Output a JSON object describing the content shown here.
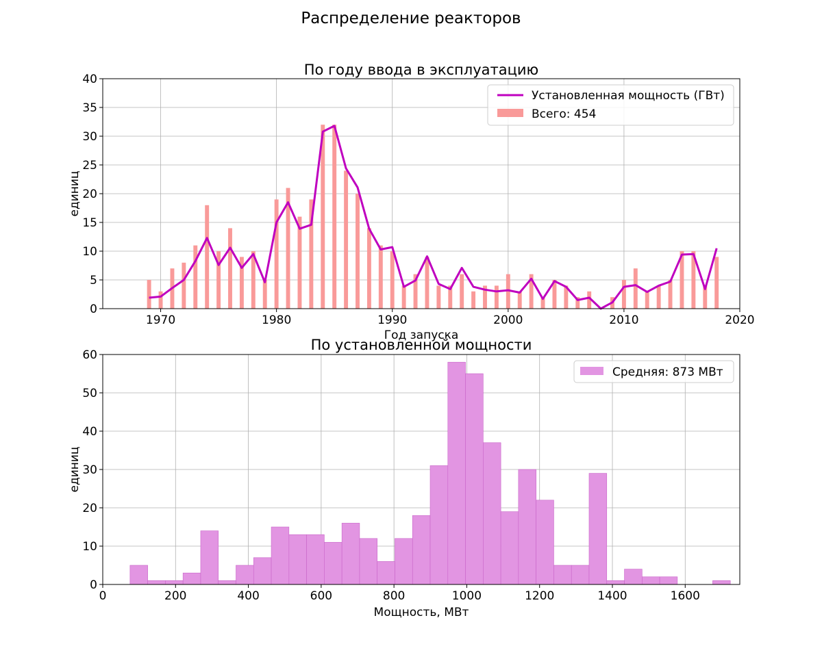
{
  "figure": {
    "title": "Распределение реакторов"
  },
  "chart_data": [
    {
      "type": "bar",
      "title": "По году ввода в эксплуатацию",
      "xlabel": "Год запуска",
      "ylabel": "единиц",
      "xlim": [
        1965,
        2020
      ],
      "ylim": [
        0,
        40
      ],
      "xticks": [
        1970,
        1980,
        1990,
        2000,
        2010,
        2020
      ],
      "yticks": [
        0,
        5,
        10,
        15,
        20,
        25,
        30,
        35,
        40
      ],
      "grid": true,
      "legend_position": "top-right",
      "x": [
        1969,
        1970,
        1971,
        1972,
        1973,
        1974,
        1975,
        1976,
        1977,
        1978,
        1979,
        1980,
        1981,
        1982,
        1983,
        1984,
        1985,
        1986,
        1987,
        1988,
        1989,
        1990,
        1991,
        1992,
        1993,
        1994,
        1995,
        1996,
        1997,
        1998,
        1999,
        2000,
        2001,
        2002,
        2003,
        2004,
        2005,
        2006,
        2007,
        2008,
        2009,
        2010,
        2011,
        2012,
        2013,
        2014,
        2015,
        2016,
        2017,
        2018
      ],
      "series": [
        {
          "name": "Всего: 454",
          "kind": "bar",
          "color": "#f99a99",
          "values": [
            5,
            3,
            7,
            8,
            11,
            18,
            10,
            14,
            9,
            10,
            5,
            19,
            21,
            16,
            19,
            32,
            32,
            24,
            20,
            14,
            11,
            10,
            4,
            6,
            9,
            4,
            4,
            6,
            3,
            4,
            4,
            6,
            3,
            6,
            2,
            5,
            4,
            2,
            3,
            0,
            2,
            5,
            7,
            3,
            4,
            5,
            10,
            10,
            4,
            9
          ]
        },
        {
          "name": "Установленная мощность (ГВт)",
          "kind": "line",
          "color": "#bf00bf",
          "values": [
            1.9,
            2.1,
            3.6,
            5.0,
            8.3,
            12.3,
            7.6,
            10.6,
            7.1,
            9.5,
            4.6,
            15.0,
            18.5,
            13.9,
            14.6,
            30.8,
            31.8,
            24.4,
            21.1,
            13.9,
            10.3,
            10.7,
            3.8,
            4.9,
            9.1,
            4.3,
            3.4,
            7.1,
            3.8,
            3.3,
            3.0,
            3.2,
            2.8,
            5.2,
            1.7,
            4.8,
            3.8,
            1.5,
            1.9,
            0.0,
            1.1,
            3.8,
            4.1,
            2.9,
            4.0,
            4.7,
            9.4,
            9.5,
            3.4,
            10.5
          ]
        }
      ]
    },
    {
      "type": "bar",
      "title": "По установленной мощности",
      "xlabel": "Мощность, МВт",
      "ylabel": "единиц",
      "xlim": [
        0,
        1750
      ],
      "ylim": [
        0,
        60
      ],
      "xticks": [
        0,
        200,
        400,
        600,
        800,
        1000,
        1200,
        1400,
        1600
      ],
      "yticks": [
        0,
        10,
        20,
        30,
        40,
        50,
        60
      ],
      "grid": true,
      "legend_position": "top-right",
      "bin_width": 48.5,
      "bin_start": 75,
      "series": [
        {
          "name": "Средняя: 873 МВт",
          "kind": "histogram",
          "color": "#e295e2",
          "edge_color": "#c965c9",
          "values": [
            5,
            1,
            1,
            3,
            14,
            1,
            5,
            7,
            15,
            13,
            13,
            11,
            16,
            12,
            6,
            12,
            18,
            31,
            58,
            55,
            37,
            19,
            30,
            22,
            5,
            5,
            29,
            1,
            4,
            2,
            2,
            0,
            0,
            1
          ]
        }
      ]
    }
  ]
}
